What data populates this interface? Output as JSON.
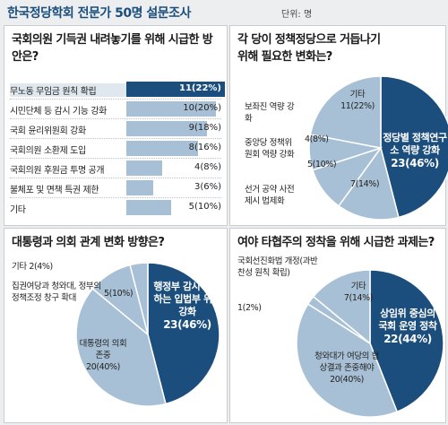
{
  "header": {
    "title": "한국정당학회 전문가 50명 설문조사",
    "unit": "단위: 명"
  },
  "colors": {
    "dark": "#1b4e7c",
    "light": "#a8c0d5",
    "line": "#ffffff"
  },
  "chart_data": [
    {
      "type": "bar",
      "question": "국회의원 기득권 내려놓기를 위해 시급한 방안은?",
      "categories": [
        "무노동 무임금 원칙 확립",
        "시민단체 등 감시 기능 강화",
        "국회 윤리위원회 강화",
        "국회의원 소환제 도입",
        "국회의원 후원금 투명 공개",
        "불체포 및 면책 특권 제한",
        "기타"
      ],
      "values": [
        11,
        10,
        9,
        8,
        4,
        3,
        5
      ],
      "value_labels": [
        "11(22%)",
        "10(20%)",
        "9(18%)",
        "8(16%)",
        "4(8%)",
        "3(6%)",
        "5(10%)"
      ],
      "highlight_index": 0,
      "xlim": [
        0,
        11
      ]
    },
    {
      "type": "pie",
      "question": "각 당이 정책정당으로 거듭나기 위해 필요한 변화는?",
      "labels": [
        "정당별 정책연구소 역량 강화",
        "선거 공약 사전 제시 법제화",
        "중앙당 정책위원회 역량 강화",
        "보좌진 역량 강화",
        "기타"
      ],
      "values": [
        23,
        7,
        5,
        4,
        11
      ],
      "value_labels": [
        "23(46%)",
        "7(14%)",
        "5(10%)",
        "4(8%)",
        "11(22%)"
      ],
      "highlight_index": 0
    },
    {
      "type": "pie",
      "question": "대통령과 의회 관계 변화 방향은?",
      "labels": [
        "행정부 감시·견제하는 입법부 위상 강화",
        "대통령의 의회 존중",
        "집권여당과 청와대, 정부의 정책조정 창구 확대",
        "기타"
      ],
      "values": [
        23,
        20,
        5,
        2
      ],
      "value_labels": [
        "23(46%)",
        "20(40%)",
        "5(10%)",
        "2(4%)"
      ],
      "highlight_index": 0
    },
    {
      "type": "pie",
      "question": "여야 타협주의 정착을 위해 시급한 과제는?",
      "labels": [
        "상임위 중심의 국회 운영 정착",
        "청와대가 여당의 협상결과 존중해야",
        "국회선진화법 개정(과반 찬성 원칙 확립)",
        "기타"
      ],
      "values": [
        22,
        20,
        1,
        7
      ],
      "value_labels": [
        "22(44%)",
        "20(40%)",
        "1(2%)",
        "7(14%)"
      ],
      "highlight_index": 0
    }
  ]
}
